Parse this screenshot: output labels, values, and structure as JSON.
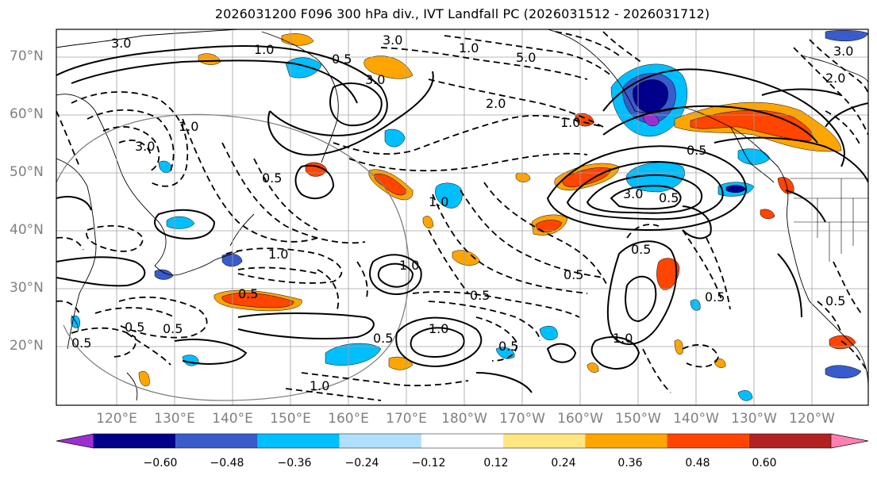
{
  "title": "2026031200 F096 300 hPa div., IVT Landfall PC (2026031512 - 2026031712)",
  "lat_labels": [
    "70°N",
    "60°N",
    "50°N",
    "40°N",
    "30°N",
    "20°N"
  ],
  "lon_labels": [
    "120°E",
    "130°E",
    "140°E",
    "150°E",
    "160°E",
    "170°E",
    "180°W",
    "170°W",
    "160°W",
    "150°W",
    "140°W",
    "130°W",
    "120°W"
  ],
  "colorbar": {
    "labels": [
      "−0.60",
      "−0.48",
      "−0.36",
      "−0.24",
      "−0.12",
      "0.12",
      "0.24",
      "0.36",
      "0.48",
      "0.60"
    ],
    "colors": [
      "#9b30d0",
      "#00008b",
      "#3a5bcc",
      "#00bfff",
      "#b0e0ff",
      "#ffffff",
      "#ffe680",
      "#ffa500",
      "#ff4500",
      "#b22222",
      "#ff80b0"
    ]
  },
  "contour_labels": [
    "3.0",
    "1.0",
    "0.5",
    "3.0",
    "2.0",
    "1.0",
    "5.0",
    "3.0",
    "1.0",
    "2.0",
    "3.0",
    "0.5",
    "1.0",
    "0.5",
    "0.5",
    "1.0",
    "0.5",
    "3.0",
    "0.5",
    "0.5",
    "1.0",
    "1.0",
    "0.5",
    "0.5",
    "0.5",
    "1.0",
    "0.5",
    "0.5",
    "0.5",
    "0.5",
    "1.0",
    "0.5",
    "1.0",
    "3.0"
  ]
}
